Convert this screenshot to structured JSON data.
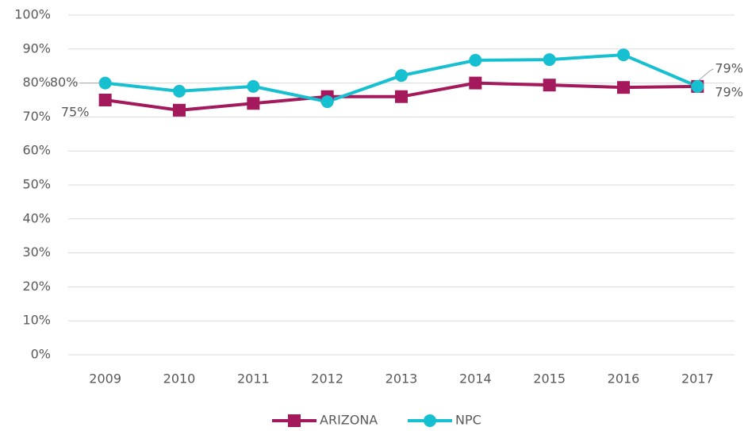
{
  "chart_data": {
    "type": "line",
    "categories": [
      "2009",
      "2010",
      "2011",
      "2012",
      "2013",
      "2014",
      "2015",
      "2016",
      "2017"
    ],
    "series": [
      {
        "name": "ARIZONA",
        "color": "#a3195b",
        "marker": "square",
        "values": [
          75,
          72,
          74,
          76,
          76,
          80,
          79.4,
          78.7,
          79
        ],
        "value_labels": [
          "75%",
          null,
          null,
          null,
          null,
          null,
          null,
          null,
          "79%"
        ]
      },
      {
        "name": "NPC",
        "color": "#17c0d0",
        "marker": "circle",
        "values": [
          80,
          77.6,
          79,
          74.5,
          82.2,
          86.7,
          86.9,
          88.3,
          79
        ],
        "value_labels": [
          "80%",
          null,
          null,
          null,
          null,
          null,
          null,
          null,
          "79%"
        ]
      }
    ],
    "ylim": [
      0,
      100
    ],
    "yticks": [
      {
        "value": 0,
        "label": "0%"
      },
      {
        "value": 10,
        "label": "10%"
      },
      {
        "value": 20,
        "label": "20%"
      },
      {
        "value": 30,
        "label": "30%"
      },
      {
        "value": 40,
        "label": "40%"
      },
      {
        "value": 50,
        "label": "50%"
      },
      {
        "value": 60,
        "label": "60%"
      },
      {
        "value": 70,
        "label": "70%"
      },
      {
        "value": 80,
        "label": "80%"
      },
      {
        "value": 90,
        "label": "90%"
      },
      {
        "value": 100,
        "label": "100%"
      }
    ],
    "grid": true,
    "legend": "bottom"
  }
}
